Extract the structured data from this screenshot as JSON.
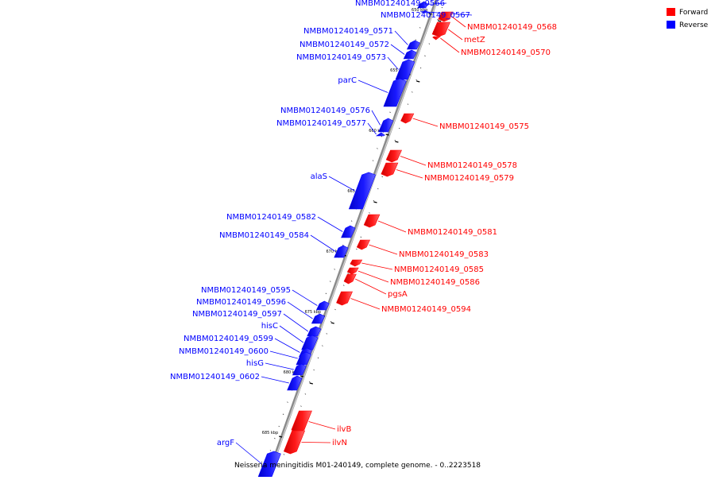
{
  "title": "Neisseria meningitidis M01-240149, complete genome. - 0..2223518",
  "legend": [
    {
      "label": "Forward",
      "color": "#ff0000"
    },
    {
      "label": "Reverse",
      "color": "#0000ff"
    }
  ],
  "colors": {
    "forward": "#ff0000",
    "reverse": "#0000ff",
    "backbone": "#999999"
  },
  "scale_labels": [
    "650 kbp",
    "655 kbp",
    "660 kbp",
    "665 kbp",
    "670 kbp",
    "675 kbp",
    "680 kbp",
    "685 kbp"
  ],
  "genes": [
    {
      "label": "NMBM01240149_0566",
      "strand": "reverse"
    },
    {
      "label": "NMBM01240149_0567",
      "strand": "reverse"
    },
    {
      "label": "NMBM01240149_0568",
      "strand": "forward"
    },
    {
      "label": "metZ",
      "strand": "forward"
    },
    {
      "label": "NMBM01240149_0570",
      "strand": "forward"
    },
    {
      "label": "NMBM01240149_0571",
      "strand": "reverse"
    },
    {
      "label": "NMBM01240149_0572",
      "strand": "reverse"
    },
    {
      "label": "NMBM01240149_0573",
      "strand": "reverse"
    },
    {
      "label": "parC",
      "strand": "reverse"
    },
    {
      "label": "NMBM01240149_0576",
      "strand": "reverse"
    },
    {
      "label": "NMBM01240149_0577",
      "strand": "reverse"
    },
    {
      "label": "NMBM01240149_0575",
      "strand": "forward"
    },
    {
      "label": "NMBM01240149_0578",
      "strand": "forward"
    },
    {
      "label": "NMBM01240149_0579",
      "strand": "forward"
    },
    {
      "label": "alaS",
      "strand": "reverse"
    },
    {
      "label": "NMBM01240149_0582",
      "strand": "reverse"
    },
    {
      "label": "NMBM01240149_0584",
      "strand": "reverse"
    },
    {
      "label": "NMBM01240149_0581",
      "strand": "forward"
    },
    {
      "label": "NMBM01240149_0583",
      "strand": "forward"
    },
    {
      "label": "NMBM01240149_0585",
      "strand": "forward"
    },
    {
      "label": "NMBM01240149_0586",
      "strand": "forward"
    },
    {
      "label": "pgsA",
      "strand": "forward"
    },
    {
      "label": "NMBM01240149_0594",
      "strand": "forward"
    },
    {
      "label": "NMBM01240149_0595",
      "strand": "reverse"
    },
    {
      "label": "NMBM01240149_0596",
      "strand": "reverse"
    },
    {
      "label": "NMBM01240149_0597",
      "strand": "reverse"
    },
    {
      "label": "hisC",
      "strand": "reverse"
    },
    {
      "label": "NMBM01240149_0599",
      "strand": "reverse"
    },
    {
      "label": "NMBM01240149_0600",
      "strand": "reverse"
    },
    {
      "label": "hisG",
      "strand": "reverse"
    },
    {
      "label": "NMBM01240149_0602",
      "strand": "reverse"
    },
    {
      "label": "ilvB",
      "strand": "forward"
    },
    {
      "label": "ilvN",
      "strand": "forward"
    },
    {
      "label": "argF",
      "strand": "reverse"
    }
  ]
}
